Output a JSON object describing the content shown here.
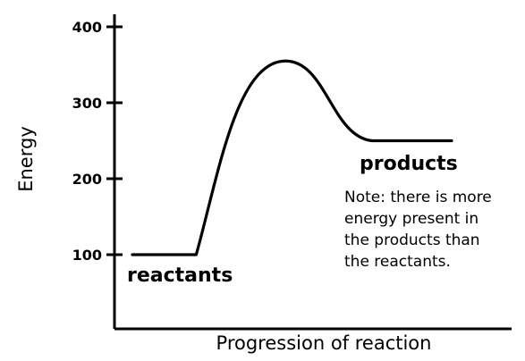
{
  "chart_data": {
    "type": "line",
    "title": "",
    "xlabel": "Progression of reaction",
    "ylabel": "Energy",
    "ylim": [
      0,
      400
    ],
    "yticks": [
      100,
      200,
      300,
      400
    ],
    "grid": false,
    "x_ticks_shown": false,
    "curve": [
      {
        "x": 0.0,
        "y": 100
      },
      {
        "x": 0.2,
        "y": 100
      },
      {
        "x": 0.48,
        "y": 355
      },
      {
        "x": 0.75,
        "y": 250
      },
      {
        "x": 1.0,
        "y": 250
      }
    ],
    "annotations": {
      "reactants": "reactants",
      "products": "products",
      "note_lines": [
        "Note: there is more",
        "energy present in",
        "the products than",
        "the reactants."
      ]
    }
  }
}
